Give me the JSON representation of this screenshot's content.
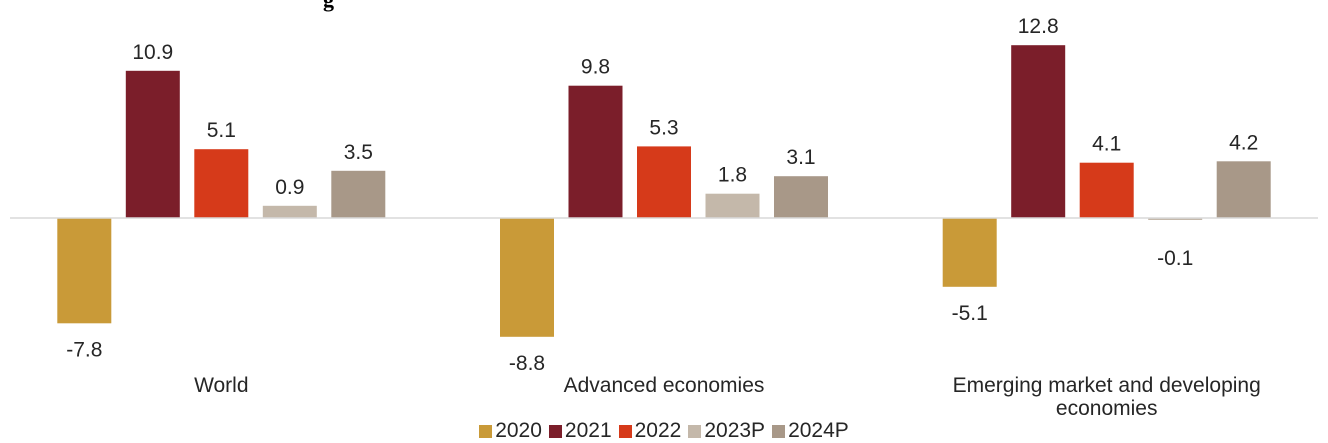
{
  "title_fragment": "g",
  "chart_data": {
    "type": "bar",
    "categories": [
      "World",
      "Advanced economies",
      "Emerging market and developing economies"
    ],
    "category_lines": [
      [
        "World"
      ],
      [
        "Advanced economies"
      ],
      [
        "Emerging market and developing",
        "economies"
      ]
    ],
    "series": [
      {
        "name": "2020",
        "color": "#C99A38",
        "values": [
          -7.8,
          -8.8,
          -5.1
        ]
      },
      {
        "name": "2021",
        "color": "#7B1E2A",
        "values": [
          10.9,
          9.8,
          12.8
        ]
      },
      {
        "name": "2022",
        "color": "#D63A1A",
        "values": [
          5.1,
          5.3,
          4.1
        ]
      },
      {
        "name": "2023P",
        "color": "#C4B8AA",
        "values": [
          0.9,
          1.8,
          -0.1
        ]
      },
      {
        "name": "2024P",
        "color": "#A89888",
        "values": [
          3.5,
          3.1,
          4.2
        ]
      }
    ],
    "ylim": [
      -10,
      13.5
    ],
    "grid": false,
    "legend_position": "bottom"
  }
}
